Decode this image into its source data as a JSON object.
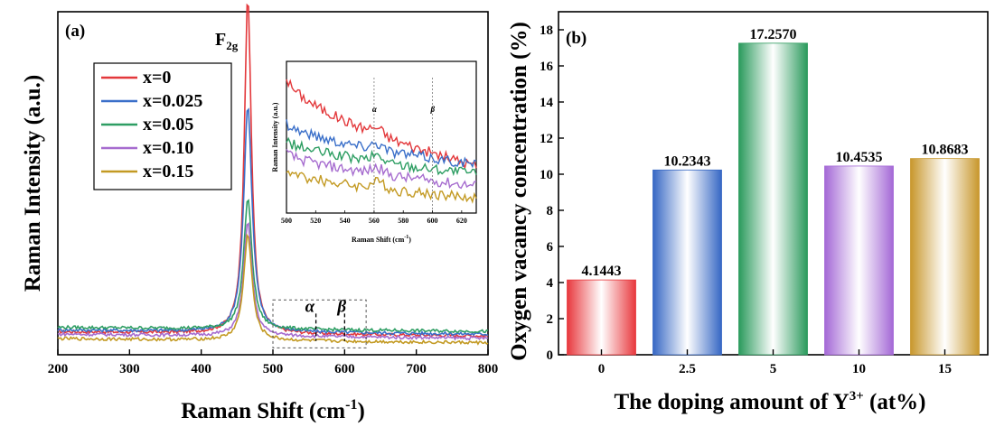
{
  "chart_data": [
    {
      "panel_label": "(a)",
      "type": "line",
      "xlabel_main": "Raman Shift (cm",
      "xlabel_sup": "-1",
      "xlabel_end": ")",
      "ylabel": "Raman Intensity (a.u.)",
      "xlim": [
        200,
        800
      ],
      "ylim": [
        0,
        100
      ],
      "x_ticks": [
        200,
        300,
        400,
        500,
        600,
        700,
        800
      ],
      "peak_label_main": "F",
      "peak_label_sub": "2g",
      "peak_position": 465,
      "annotations": {
        "alpha": "α",
        "beta": "β",
        "alpha_x": 560,
        "beta_x": 600
      },
      "zoom_box": {
        "x": [
          500,
          630
        ],
        "y": [
          2,
          16
        ]
      },
      "legend_position": "upper-left",
      "series": [
        {
          "name": "x=0",
          "color": "#e3383b",
          "peak": 98,
          "width": 6,
          "baseline": 5.5
        },
        {
          "name": "x=0.025",
          "color": "#3a6fc9",
          "peak": 66,
          "width": 7,
          "baseline": 6.0
        },
        {
          "name": "x=0.05",
          "color": "#2e9e63",
          "peak": 38,
          "width": 7,
          "baseline": 6.8
        },
        {
          "name": "x=0.10",
          "color": "#a66ccf",
          "peak": 33,
          "width": 7,
          "baseline": 4.8
        },
        {
          "name": "x=0.15",
          "color": "#c39a23",
          "peak": 31,
          "width": 7,
          "baseline": 3.5
        }
      ],
      "inset": {
        "xlabel_main": "Raman Shift (cm",
        "xlabel_sup": "-1",
        "xlabel_end": ")",
        "ylabel": "Raman Intensity (a.u.)",
        "xlim": [
          500,
          630
        ],
        "x_ticks": [
          500,
          520,
          540,
          560,
          580,
          600,
          620
        ],
        "marker_lines": [
          560,
          600
        ],
        "alpha": "α",
        "beta": "β",
        "series_levels": [
          {
            "start": 0.9,
            "end": 0.31
          },
          {
            "start": 0.6,
            "end": 0.32
          },
          {
            "start": 0.48,
            "end": 0.26
          },
          {
            "start": 0.4,
            "end": 0.18
          },
          {
            "start": 0.28,
            "end": 0.1
          }
        ]
      }
    },
    {
      "panel_label": "(b)",
      "type": "bar",
      "categories": [
        "0",
        "2.5",
        "5",
        "10",
        "15"
      ],
      "values": [
        4.1443,
        10.2343,
        17.257,
        10.4535,
        10.8683
      ],
      "value_labels": [
        "4.1443",
        "10.2343",
        "17.2570",
        "10.4535",
        "10.8683"
      ],
      "colors": [
        "#e8383d",
        "#3667c4",
        "#2a9a5c",
        "#a468d6",
        "#c8972c"
      ],
      "xlabel_main": "The doping amount of Y",
      "xlabel_sup": "3+",
      "xlabel_end": " (at%)",
      "ylabel": "Oxygen vacancy concentration (%)",
      "ylim": [
        0,
        19
      ],
      "y_ticks": [
        0,
        2,
        4,
        6,
        8,
        10,
        12,
        14,
        16,
        18
      ]
    }
  ]
}
